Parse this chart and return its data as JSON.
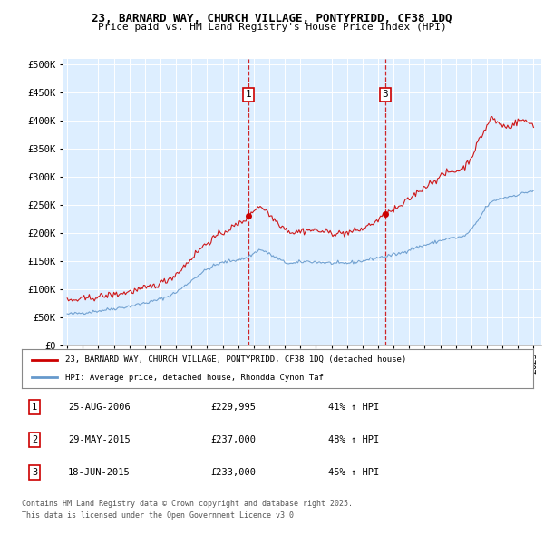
{
  "title1": "23, BARNARD WAY, CHURCH VILLAGE, PONTYPRIDD, CF38 1DQ",
  "title2": "Price paid vs. HM Land Registry's House Price Index (HPI)",
  "ylabel_ticks": [
    "£0",
    "£50K",
    "£100K",
    "£150K",
    "£200K",
    "£250K",
    "£300K",
    "£350K",
    "£400K",
    "£450K",
    "£500K"
  ],
  "ytick_vals": [
    0,
    50000,
    100000,
    150000,
    200000,
    250000,
    300000,
    350000,
    400000,
    450000,
    500000
  ],
  "ylim": [
    0,
    510000
  ],
  "xlim_start": 1994.7,
  "xlim_end": 2025.5,
  "xticks": [
    1995,
    1996,
    1997,
    1998,
    1999,
    2000,
    2001,
    2002,
    2003,
    2004,
    2005,
    2006,
    2007,
    2008,
    2009,
    2010,
    2011,
    2012,
    2013,
    2014,
    2015,
    2016,
    2017,
    2018,
    2019,
    2020,
    2021,
    2022,
    2023,
    2024,
    2025
  ],
  "red_line_color": "#cc0000",
  "blue_line_color": "#6699cc",
  "plot_bg_color": "#ddeeff",
  "grid_color": "#ffffff",
  "sale_markers": [
    {
      "label": "1",
      "date_decimal": 2006.647,
      "price": 229995
    },
    {
      "label": "3",
      "date_decimal": 2015.463,
      "price": 233000
    }
  ],
  "transactions": [
    {
      "num": "1",
      "date": "25-AUG-2006",
      "price": "£229,995",
      "change": "41% ↑ HPI"
    },
    {
      "num": "2",
      "date": "29-MAY-2015",
      "price": "£237,000",
      "change": "48% ↑ HPI"
    },
    {
      "num": "3",
      "date": "18-JUN-2015",
      "price": "£233,000",
      "change": "45% ↑ HPI"
    }
  ],
  "legend_line1": "23, BARNARD WAY, CHURCH VILLAGE, PONTYPRIDD, CF38 1DQ (detached house)",
  "legend_line2": "HPI: Average price, detached house, Rhondda Cynon Taf",
  "footer1": "Contains HM Land Registry data © Crown copyright and database right 2025.",
  "footer2": "This data is licensed under the Open Government Licence v3.0."
}
